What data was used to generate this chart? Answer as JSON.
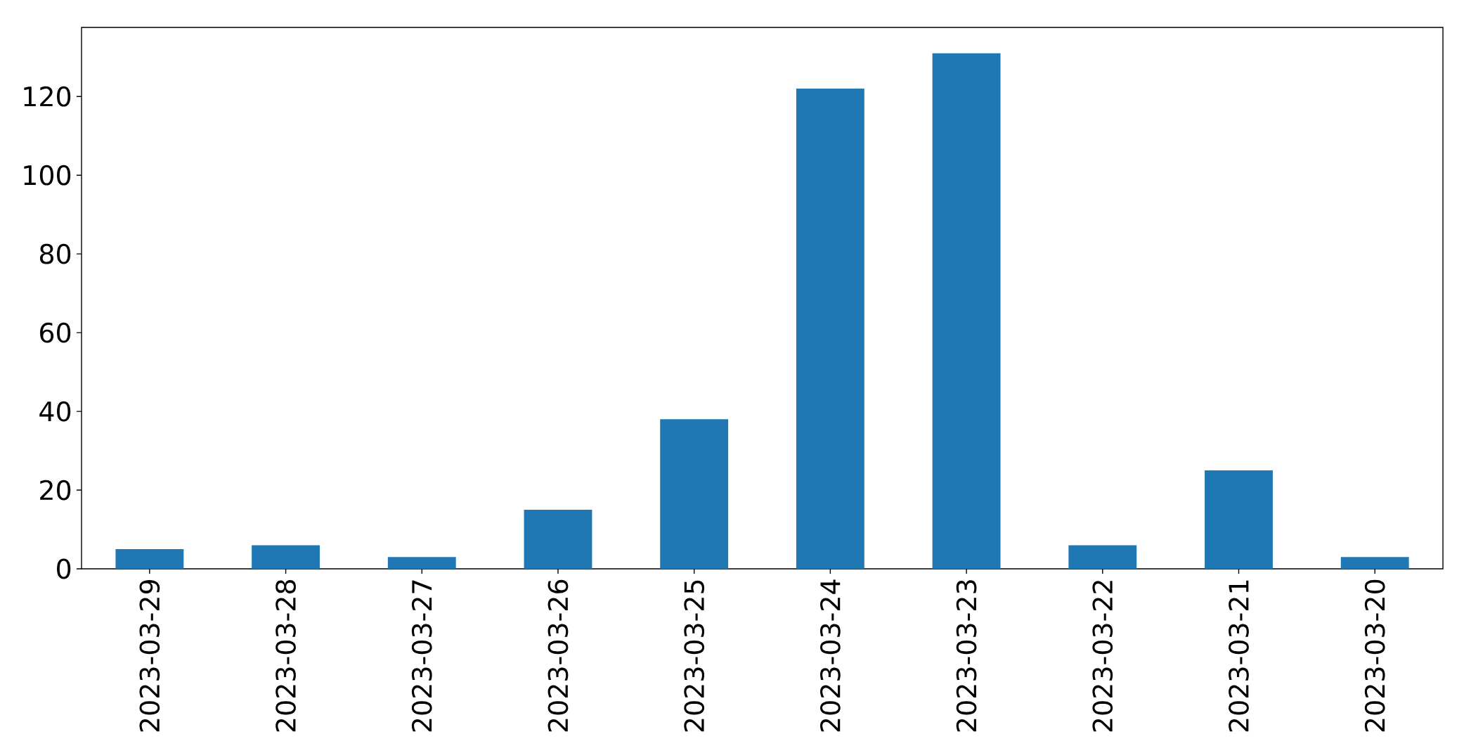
{
  "chart_data": {
    "type": "bar",
    "categories": [
      "2023-03-29",
      "2023-03-28",
      "2023-03-27",
      "2023-03-26",
      "2023-03-25",
      "2023-03-24",
      "2023-03-23",
      "2023-03-22",
      "2023-03-21",
      "2023-03-20"
    ],
    "values": [
      5,
      6,
      3,
      15,
      38,
      122,
      131,
      6,
      25,
      3
    ],
    "color": "#1f77b4",
    "ylim": [
      0,
      137.55
    ],
    "yticks": [
      0,
      20,
      40,
      60,
      80,
      100,
      120
    ]
  }
}
